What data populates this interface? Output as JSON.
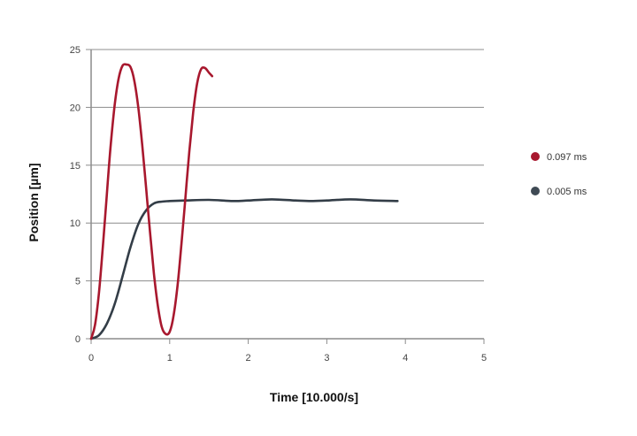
{
  "chart_data": {
    "type": "line",
    "title": "",
    "xlabel": "Time [10.000/s]",
    "ylabel": "Position [µm]",
    "xlim": [
      0,
      5
    ],
    "ylim": [
      0,
      25
    ],
    "xticks": [
      0,
      1,
      2,
      3,
      4,
      5
    ],
    "yticks": [
      0,
      5,
      10,
      15,
      20,
      25
    ],
    "grid": {
      "horizontal": true,
      "vertical": false
    },
    "legend_position": "right",
    "series": [
      {
        "name": "0.097 ms",
        "color": "#a8182e",
        "x": [
          0,
          0.05,
          0.1,
          0.15,
          0.2,
          0.25,
          0.3,
          0.35,
          0.4,
          0.45,
          0.5,
          0.55,
          0.6,
          0.65,
          0.7,
          0.75,
          0.8,
          0.85,
          0.9,
          0.95,
          1.0,
          1.05,
          1.1,
          1.15,
          1.2,
          1.25,
          1.3,
          1.35,
          1.4,
          1.45,
          1.5,
          1.54
        ],
        "values": [
          0,
          1.2,
          4.0,
          8.0,
          12.5,
          16.8,
          20.2,
          22.5,
          23.6,
          23.7,
          23.5,
          22.3,
          20.0,
          16.8,
          13.0,
          9.2,
          5.6,
          2.8,
          1.0,
          0.4,
          0.6,
          2.0,
          4.6,
          8.2,
          12.2,
          16.2,
          19.6,
          22.1,
          23.3,
          23.4,
          23.0,
          22.7
        ]
      },
      {
        "name": "0.005 ms",
        "color": "#333d47",
        "x": [
          0,
          0.1,
          0.2,
          0.3,
          0.4,
          0.5,
          0.6,
          0.7,
          0.8,
          0.9,
          1.0,
          1.2,
          1.5,
          1.8,
          2.0,
          2.3,
          2.6,
          2.8,
          3.0,
          3.3,
          3.6,
          3.9
        ],
        "values": [
          0,
          0.3,
          1.3,
          3.0,
          5.4,
          7.9,
          9.9,
          11.1,
          11.7,
          11.85,
          11.9,
          11.95,
          12.0,
          11.9,
          11.95,
          12.05,
          11.95,
          11.9,
          11.95,
          12.05,
          11.95,
          11.9
        ]
      }
    ]
  },
  "legend": {
    "items": [
      {
        "label": "0.097 ms",
        "color": "#a8182e"
      },
      {
        "label": "0.005 ms",
        "color": "#3f4a54"
      }
    ]
  }
}
